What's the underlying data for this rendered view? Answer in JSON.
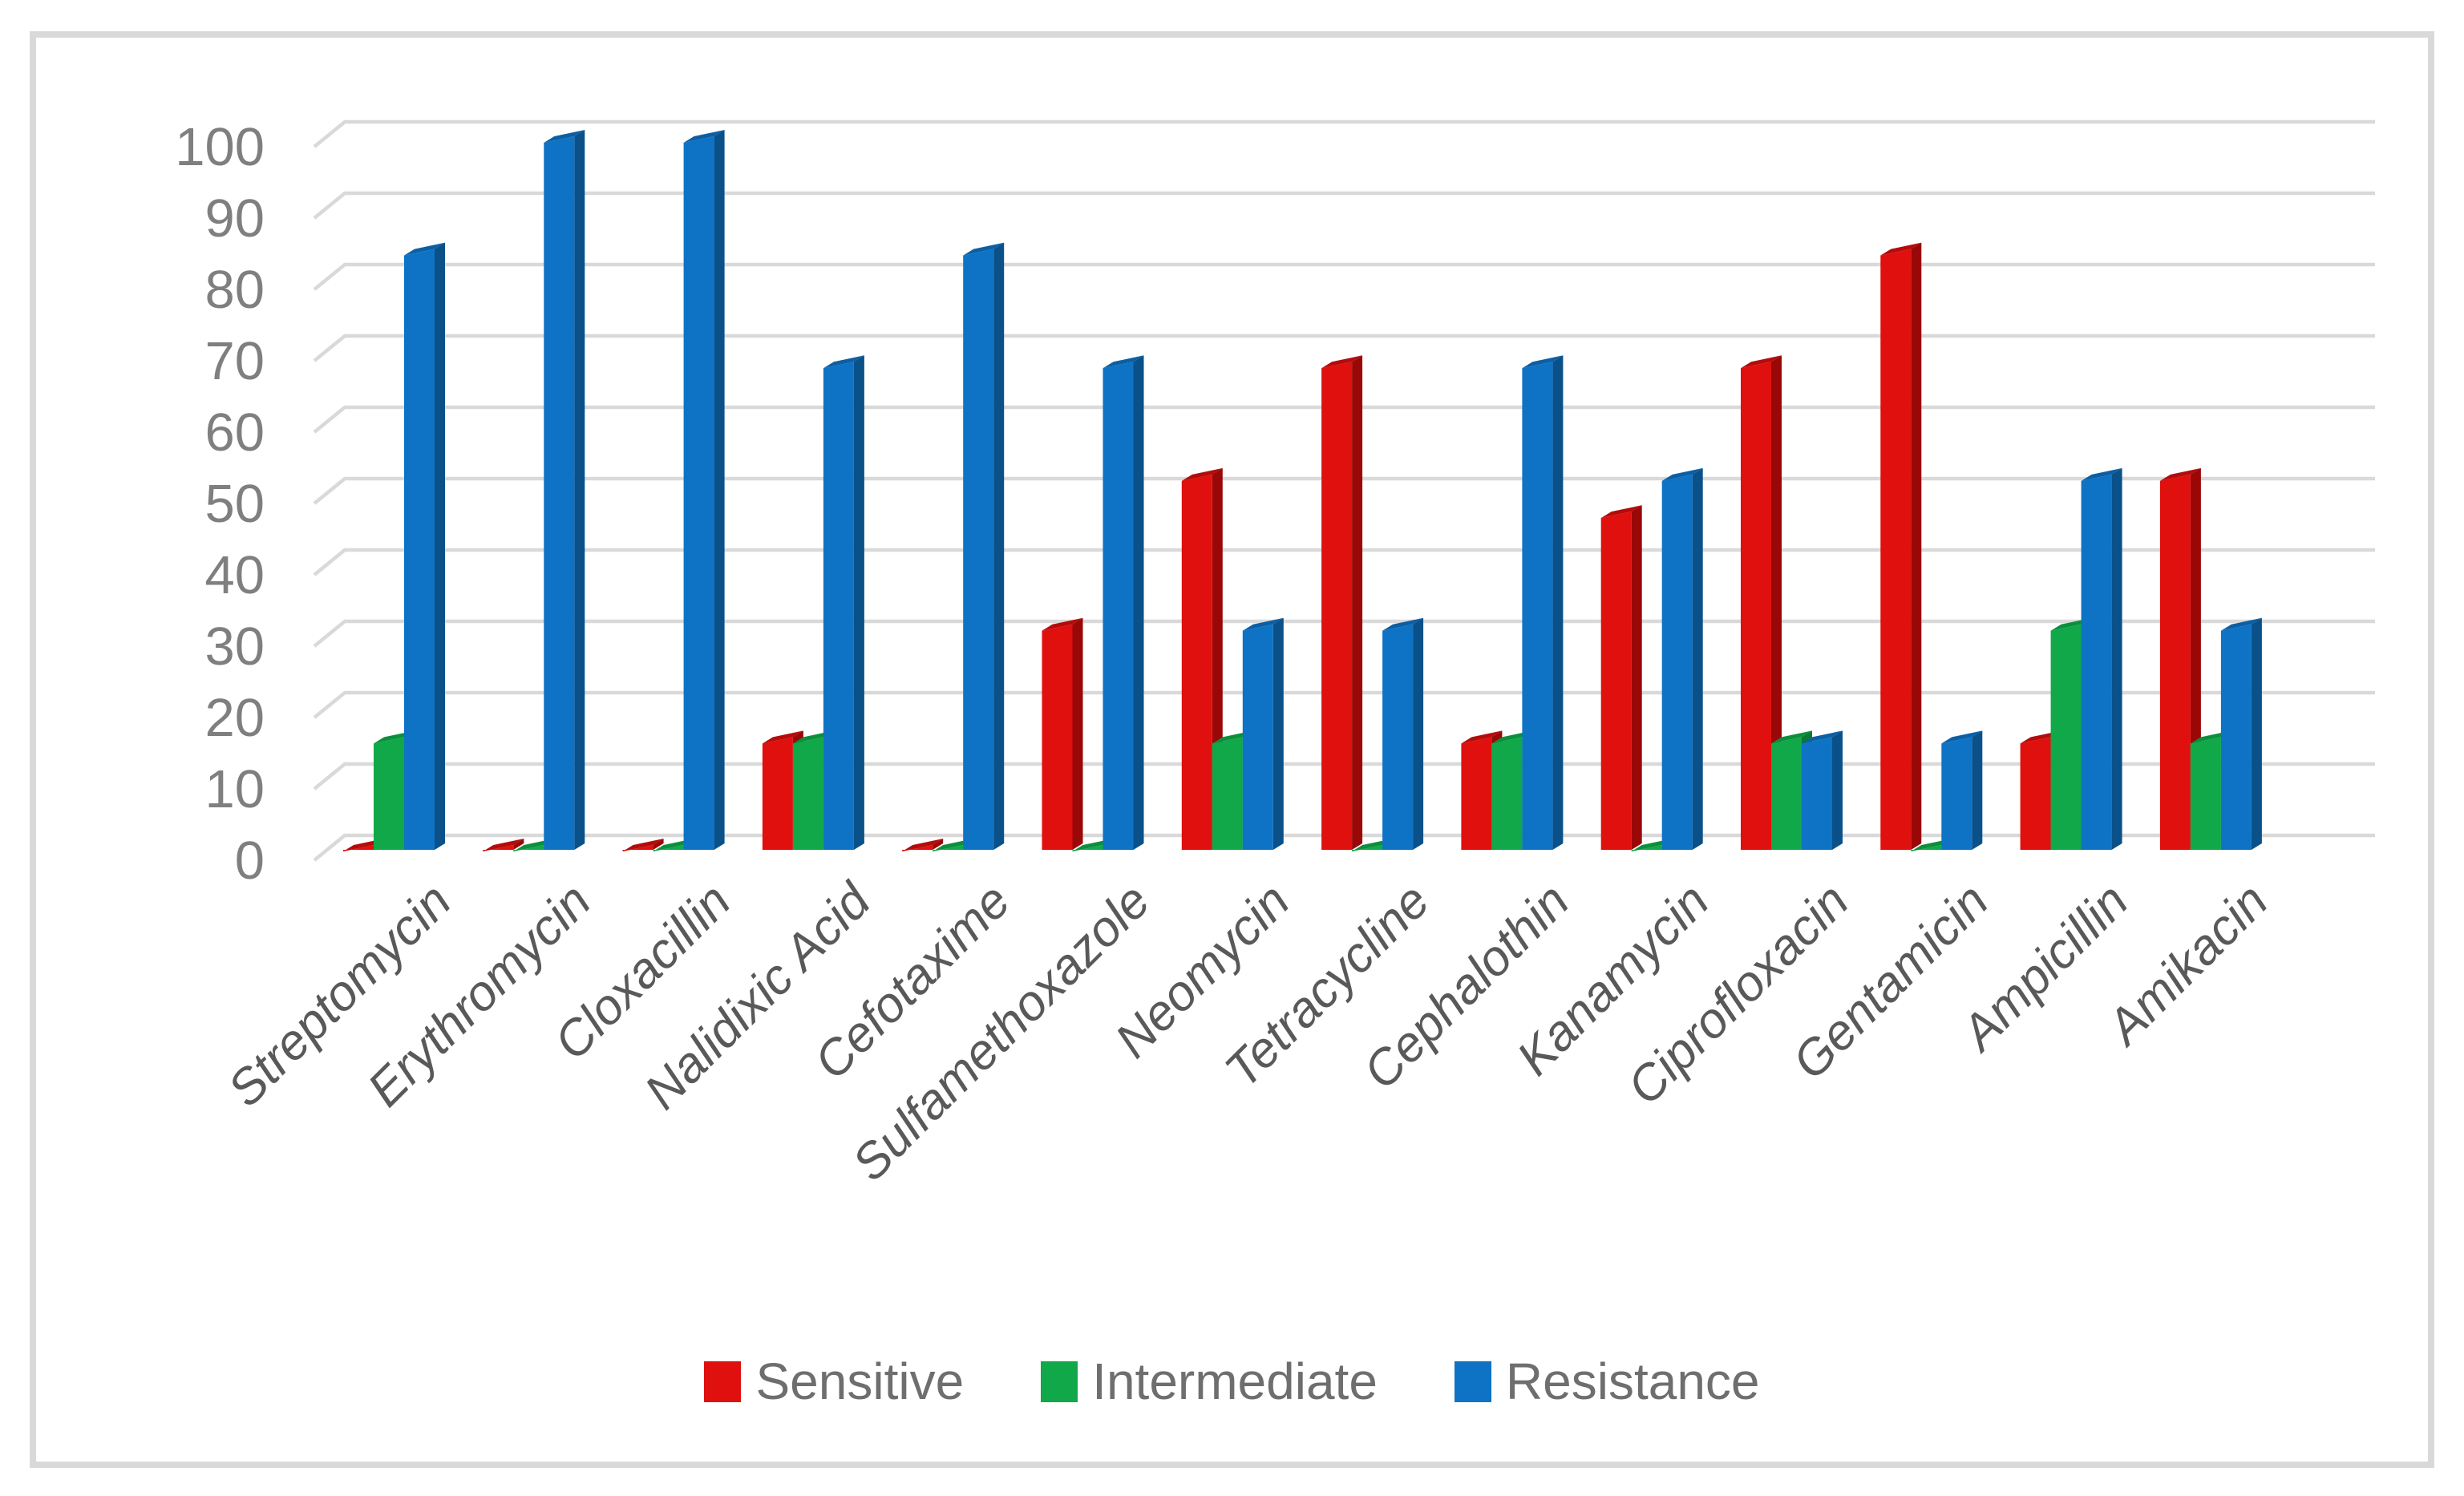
{
  "figure": {
    "background": "#ffffff",
    "border_color": "#d9d9d9",
    "gridline_color": "#d9d9d9",
    "y_tick_color": "#7f7f7f",
    "category_label_color": "#595959",
    "legend_text_color": "#6e6e6e"
  },
  "chart_data": {
    "type": "bar",
    "style": "3d-column",
    "title": "",
    "xlabel": "",
    "ylabel": "",
    "ylim": [
      0,
      100
    ],
    "grid": true,
    "legend_position": "bottom",
    "y_ticks": [
      0,
      10,
      20,
      30,
      40,
      50,
      60,
      70,
      80,
      90,
      100
    ],
    "categories": [
      "Streptomycin",
      "Erythromycin",
      "Cloxacillin",
      "Nalidixic Acid",
      "Cefotaxime",
      "Sulfamethoxazole",
      "Neomycin",
      "Tetracycline",
      "Cephalothin",
      "Kanamycin",
      "Ciprofloxacin",
      "Gentamicin",
      "Ampicillin",
      "Amikacin"
    ],
    "series": [
      {
        "name": "Sensitive",
        "color": "#df100e",
        "color_top": "#b40c0b",
        "color_side": "#990807",
        "values": [
          0,
          0,
          0,
          15.8,
          0,
          31.6,
          52.6,
          68.4,
          15.8,
          47.4,
          68.4,
          84.2,
          15.8,
          52.6
        ]
      },
      {
        "name": "Intermediate",
        "color": "#10a848",
        "color_top": "#0c8f3c",
        "color_side": "#097a31",
        "values": [
          15.8,
          0,
          0,
          15.8,
          0,
          0,
          15.8,
          0,
          15.8,
          0,
          15.8,
          0,
          31.6,
          15.8
        ]
      },
      {
        "name": "Resistance",
        "color": "#0e73c4",
        "color_top": "#0c5fa4",
        "color_side": "#0a5189",
        "values": [
          84.2,
          100,
          100,
          68.4,
          84.2,
          68.4,
          31.6,
          31.6,
          68.4,
          52.6,
          15.8,
          15.8,
          52.6,
          31.6
        ]
      }
    ]
  }
}
